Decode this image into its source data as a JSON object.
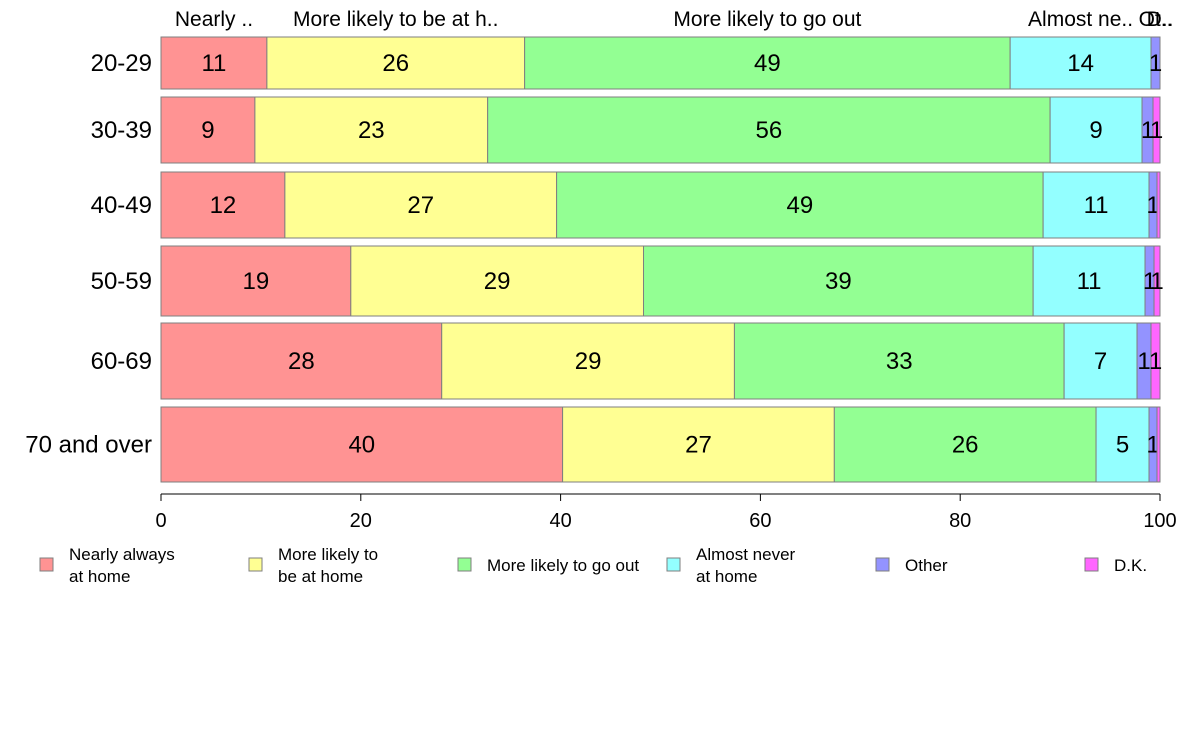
{
  "chart_data": {
    "type": "bar",
    "orientation": "horizontal",
    "stacked": true,
    "categories": [
      "20-29",
      "30-39",
      "40-49",
      "50-59",
      "60-69",
      "70 and over"
    ],
    "series": [
      {
        "name": "Nearly always\nat home",
        "header_label": "Nearly ..",
        "color": "#ff9393",
        "values": [
          10.6,
          9.4,
          12.4,
          19.0,
          28.1,
          40.2
        ]
      },
      {
        "name": "More likely to\nbe at home",
        "header_label": "More likely to be at h..",
        "color": "#ffff93",
        "values": [
          25.8,
          23.3,
          27.2,
          29.3,
          29.3,
          27.2
        ]
      },
      {
        "name": "More likely to go out",
        "header_label": "More likely to go out",
        "color": "#93ff93",
        "values": [
          48.6,
          56.3,
          48.7,
          39.0,
          33.0,
          26.2
        ]
      },
      {
        "name": "Almost never\nat home",
        "header_label": "Almost ne..",
        "color": "#93ffff",
        "values": [
          14.1,
          9.2,
          10.6,
          11.2,
          7.3,
          5.3
        ]
      },
      {
        "name": "Other",
        "header_label": "Ot..",
        "color": "#9393ff",
        "values": [
          0.9,
          1.1,
          0.8,
          0.9,
          1.4,
          0.8
        ]
      },
      {
        "name": "D.K.",
        "header_label": "D..",
        "color": "#ff66ff",
        "values": [
          0.0,
          0.7,
          0.3,
          0.6,
          0.9,
          0.3
        ]
      }
    ],
    "segment_labels": [
      [
        "11",
        "26",
        "49",
        "14",
        "1",
        ""
      ],
      [
        "9",
        "23",
        "56",
        "9",
        "1",
        "1"
      ],
      [
        "12",
        "27",
        "49",
        "11",
        "1",
        ""
      ],
      [
        "19",
        "29",
        "39",
        "11",
        "1",
        "1"
      ],
      [
        "28",
        "29",
        "33",
        "7",
        "1",
        "1"
      ],
      [
        "40",
        "27",
        "26",
        "5",
        "1",
        ""
      ]
    ],
    "xlim": [
      0,
      100
    ],
    "xticks": [
      "0",
      "20",
      "40",
      "60",
      "80",
      "100"
    ],
    "title": "",
    "xlabel": "",
    "ylabel": "",
    "grid": false,
    "legend_position": "bottom"
  }
}
